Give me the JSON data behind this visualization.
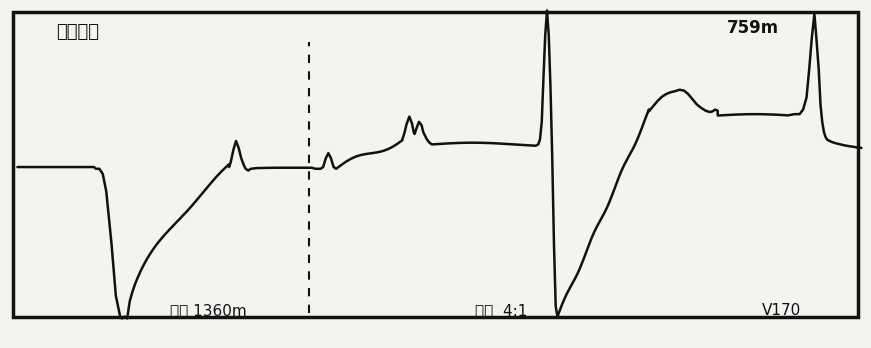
{
  "bg_color": "#f5f3f0",
  "line_color": "#111111",
  "border_color": "#111111",
  "label_top_left": "脉冲电流",
  "label_bottom_left": "范围 1360m",
  "label_bottom_mid": "比例  4:1",
  "label_bottom_right": "V170",
  "label_top_right": "759m",
  "figsize": [
    8.71,
    3.48
  ],
  "dpi": 100
}
